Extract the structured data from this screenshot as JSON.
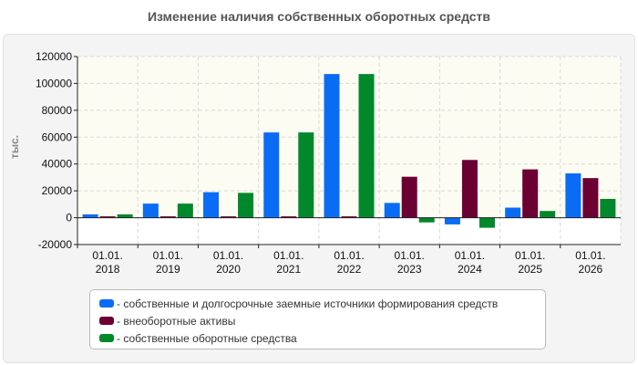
{
  "title": "Изменение наличия собственных оборотных средств",
  "chart_data": {
    "type": "bar",
    "ylabel": "тыс.",
    "ylim": [
      -20000,
      120000
    ],
    "yticks": [
      -20000,
      0,
      20000,
      40000,
      60000,
      80000,
      100000,
      120000
    ],
    "categories": [
      [
        "01.01.",
        "2018"
      ],
      [
        "01.01.",
        "2019"
      ],
      [
        "01.01.",
        "2020"
      ],
      [
        "01.01.",
        "2021"
      ],
      [
        "01.01.",
        "2022"
      ],
      [
        "01.01.",
        "2023"
      ],
      [
        "01.01.",
        "2024"
      ],
      [
        "01.01.",
        "2025"
      ],
      [
        "01.01.",
        "2026"
      ]
    ],
    "series": [
      {
        "name": "- собственные и долгосрочные заемные источники формирования средств",
        "color": "#0a6cf5",
        "values": [
          2500,
          10500,
          19000,
          63500,
          107000,
          11000,
          -5000,
          7500,
          33000
        ]
      },
      {
        "name": "- внеоборотные активы",
        "color": "#6b0033",
        "values": [
          1000,
          1000,
          1000,
          1000,
          1000,
          30500,
          43000,
          36000,
          29500
        ]
      },
      {
        "name": "- собственные оборотные средства",
        "color": "#00882b",
        "values": [
          2500,
          10500,
          18500,
          63500,
          107000,
          -3500,
          -7500,
          5000,
          14000
        ]
      }
    ],
    "grid": true,
    "legend_position": "bottom"
  }
}
